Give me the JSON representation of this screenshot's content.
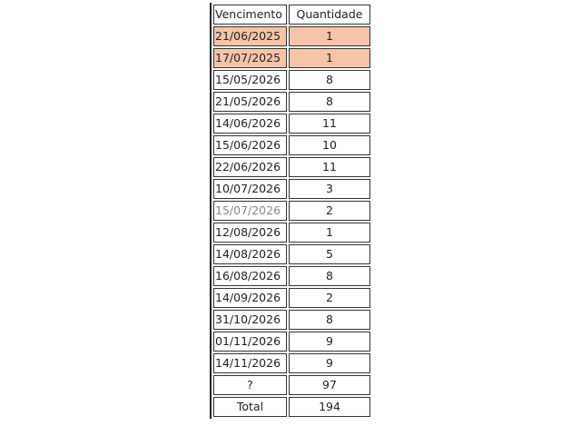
{
  "table": {
    "headers": [
      "Vencimento",
      "Quantidade"
    ],
    "highlight_color": "#f7c4a8",
    "rows": [
      {
        "date": "21/06/2025",
        "qty": "1",
        "highlight": true
      },
      {
        "date": "17/07/2025",
        "qty": "1",
        "highlight": true
      },
      {
        "date": "15/05/2026",
        "qty": "8"
      },
      {
        "date": "21/05/2026",
        "qty": "8"
      },
      {
        "date": "14/06/2026",
        "qty": "11"
      },
      {
        "date": "15/06/2026",
        "qty": "10"
      },
      {
        "date": "22/06/2026",
        "qty": "11"
      },
      {
        "date": "10/07/2026",
        "qty": "3"
      },
      {
        "date": "15/07/2026",
        "qty": "2",
        "faded": true
      },
      {
        "date": "12/08/2026",
        "qty": "1"
      },
      {
        "date": "14/08/2026",
        "qty": "5"
      },
      {
        "date": "16/08/2026",
        "qty": "8"
      },
      {
        "date": "14/09/2026",
        "qty": "2"
      },
      {
        "date": "31/10/2026",
        "qty": "8"
      },
      {
        "date": "01/11/2026",
        "qty": "9"
      },
      {
        "date": "14/11/2026",
        "qty": "9"
      },
      {
        "date": "?",
        "qty": "97",
        "center": true
      },
      {
        "date": "Total",
        "qty": "194",
        "center": true
      }
    ]
  }
}
